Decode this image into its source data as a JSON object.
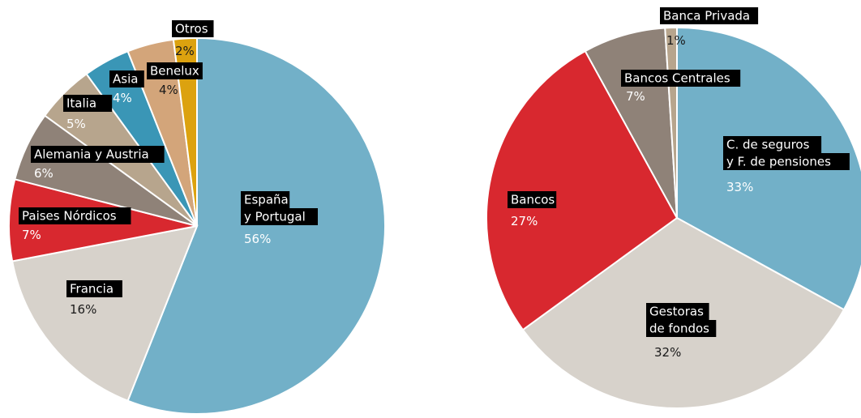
{
  "chart_data": [
    {
      "type": "pie",
      "title": "",
      "slices": [
        {
          "label": [
            "España",
            "y Portugal"
          ],
          "value": 56,
          "value_label": "56%",
          "color": "#72b0c8"
        },
        {
          "label": [
            "Francia"
          ],
          "value": 16,
          "value_label": "16%",
          "color": "#d7d2cb"
        },
        {
          "label": [
            "Paises Nórdicos"
          ],
          "value": 7,
          "value_label": "7%",
          "color": "#d8282f"
        },
        {
          "label": [
            "Alemania y Austria"
          ],
          "value": 6,
          "value_label": "6%",
          "color": "#8f8278"
        },
        {
          "label": [
            "Italia"
          ],
          "value": 5,
          "value_label": "5%",
          "color": "#b7a58d"
        },
        {
          "label": [
            "Asia"
          ],
          "value": 4,
          "value_label": "4%",
          "color": "#3a96b6"
        },
        {
          "label": [
            "Benelux"
          ],
          "value": 4,
          "value_label": "4%",
          "color": "#d3a57a"
        },
        {
          "label": [
            "Otros"
          ],
          "value": 2,
          "value_label": "2%",
          "color": "#dca20f"
        }
      ]
    },
    {
      "type": "pie",
      "title": "",
      "slices": [
        {
          "label": [
            "C. de seguros",
            "y F. de pensiones"
          ],
          "value": 33,
          "value_label": "33%",
          "color": "#72b0c8"
        },
        {
          "label": [
            "Gestoras",
            "de fondos"
          ],
          "value": 32,
          "value_label": "32%",
          "color": "#d7d2cb"
        },
        {
          "label": [
            "Bancos"
          ],
          "value": 27,
          "value_label": "27%",
          "color": "#d8282f"
        },
        {
          "label": [
            "Bancos Centrales"
          ],
          "value": 7,
          "value_label": "7%",
          "color": "#8f8278"
        },
        {
          "label": [
            "Banca Privada"
          ],
          "value": 1,
          "value_label": "1%",
          "color": "#b7a58d"
        }
      ]
    }
  ],
  "style": {
    "label_background": "#000000",
    "label_text_color": "#ffffff",
    "slice_border_color": "#ffffff"
  }
}
